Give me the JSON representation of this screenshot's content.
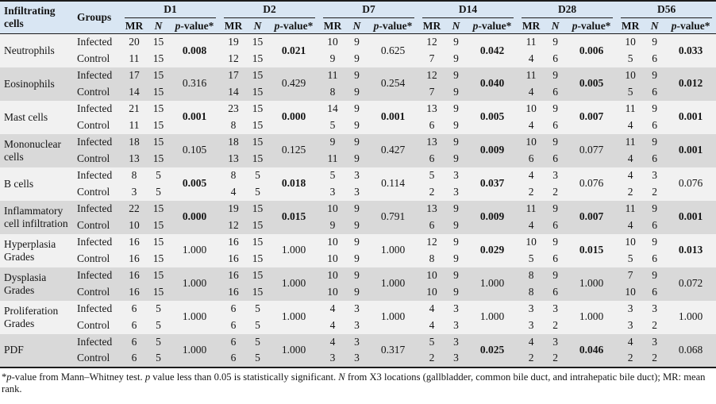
{
  "table": {
    "col_infiltrating": "Infiltrating cells",
    "col_groups": "Groups",
    "days": [
      "D1",
      "D2",
      "D7",
      "D14",
      "D28",
      "D56"
    ],
    "sub_mr": "MR",
    "sub_n": "N",
    "sub_p_italic": "p",
    "sub_p_rest": "-value*",
    "group_labels": [
      "Infected",
      "Control"
    ],
    "rows": [
      {
        "name": "Neutrophils",
        "infected_mr": [
          20,
          19,
          10,
          12,
          11,
          10
        ],
        "infected_n": [
          15,
          15,
          9,
          9,
          9,
          9
        ],
        "control_mr": [
          11,
          12,
          9,
          7,
          4,
          5
        ],
        "control_n": [
          15,
          15,
          9,
          9,
          6,
          6
        ],
        "p": [
          "0.008",
          "0.021",
          "0.625",
          "0.042",
          "0.006",
          "0.033"
        ],
        "p_bold": [
          true,
          true,
          false,
          true,
          true,
          true
        ]
      },
      {
        "name": "Eosinophils",
        "infected_mr": [
          17,
          17,
          11,
          12,
          11,
          10
        ],
        "infected_n": [
          15,
          15,
          9,
          9,
          9,
          9
        ],
        "control_mr": [
          14,
          14,
          8,
          7,
          4,
          5
        ],
        "control_n": [
          15,
          15,
          9,
          9,
          6,
          6
        ],
        "p": [
          "0.316",
          "0.429",
          "0.254",
          "0.040",
          "0.005",
          "0.012"
        ],
        "p_bold": [
          false,
          false,
          false,
          true,
          true,
          true
        ]
      },
      {
        "name": "Mast cells",
        "infected_mr": [
          21,
          23,
          14,
          13,
          10,
          11
        ],
        "infected_n": [
          15,
          15,
          9,
          9,
          9,
          9
        ],
        "control_mr": [
          11,
          8,
          5,
          6,
          4,
          4
        ],
        "control_n": [
          15,
          15,
          9,
          9,
          6,
          6
        ],
        "p": [
          "0.001",
          "0.000",
          "0.001",
          "0.005",
          "0.007",
          "0.001"
        ],
        "p_bold": [
          true,
          true,
          true,
          true,
          true,
          true
        ]
      },
      {
        "name": "Mononuclear cells",
        "infected_mr": [
          18,
          18,
          9,
          13,
          10,
          11
        ],
        "infected_n": [
          15,
          15,
          9,
          9,
          9,
          9
        ],
        "control_mr": [
          13,
          13,
          11,
          6,
          6,
          4
        ],
        "control_n": [
          15,
          15,
          9,
          9,
          6,
          6
        ],
        "p": [
          "0.105",
          "0.125",
          "0.427",
          "0.009",
          "0.077",
          "0.001"
        ],
        "p_bold": [
          false,
          false,
          false,
          true,
          false,
          true
        ]
      },
      {
        "name": "B cells",
        "infected_mr": [
          8,
          8,
          5,
          5,
          4,
          4
        ],
        "infected_n": [
          5,
          5,
          3,
          3,
          3,
          3
        ],
        "control_mr": [
          3,
          4,
          3,
          2,
          2,
          2
        ],
        "control_n": [
          5,
          5,
          3,
          3,
          2,
          2
        ],
        "p": [
          "0.005",
          "0.018",
          "0.114",
          "0.037",
          "0.076",
          "0.076"
        ],
        "p_bold": [
          true,
          true,
          false,
          true,
          false,
          false
        ]
      },
      {
        "name": "Inflammatory cell infiltration",
        "infected_mr": [
          22,
          19,
          10,
          13,
          11,
          11
        ],
        "infected_n": [
          15,
          15,
          9,
          9,
          9,
          9
        ],
        "control_mr": [
          10,
          12,
          9,
          6,
          4,
          4
        ],
        "control_n": [
          15,
          15,
          9,
          9,
          6,
          6
        ],
        "p": [
          "0.000",
          "0.015",
          "0.791",
          "0.009",
          "0.007",
          "0.001"
        ],
        "p_bold": [
          true,
          true,
          false,
          true,
          true,
          true
        ]
      },
      {
        "name": "Hyperplasia Grades",
        "infected_mr": [
          16,
          16,
          10,
          12,
          10,
          10
        ],
        "infected_n": [
          15,
          15,
          9,
          9,
          9,
          9
        ],
        "control_mr": [
          16,
          16,
          10,
          8,
          5,
          5
        ],
        "control_n": [
          15,
          15,
          9,
          9,
          6,
          6
        ],
        "p": [
          "1.000",
          "1.000",
          "1.000",
          "0.029",
          "0.015",
          "0.013"
        ],
        "p_bold": [
          false,
          false,
          false,
          true,
          true,
          true
        ]
      },
      {
        "name": "Dysplasia Grades",
        "infected_mr": [
          16,
          16,
          10,
          10,
          8,
          7
        ],
        "infected_n": [
          15,
          15,
          9,
          9,
          9,
          9
        ],
        "control_mr": [
          16,
          16,
          10,
          10,
          8,
          10
        ],
        "control_n": [
          15,
          15,
          9,
          9,
          6,
          6
        ],
        "p": [
          "1.000",
          "1.000",
          "1.000",
          "1.000",
          "1.000",
          "0.072"
        ],
        "p_bold": [
          false,
          false,
          false,
          false,
          false,
          false
        ]
      },
      {
        "name": "Proliferation Grades",
        "infected_mr": [
          6,
          6,
          4,
          4,
          3,
          3
        ],
        "infected_n": [
          5,
          5,
          3,
          3,
          3,
          3
        ],
        "control_mr": [
          6,
          6,
          4,
          4,
          3,
          3
        ],
        "control_n": [
          5,
          5,
          3,
          3,
          2,
          2
        ],
        "p": [
          "1.000",
          "1.000",
          "1.000",
          "1.000",
          "1.000",
          "1.000"
        ],
        "p_bold": [
          false,
          false,
          false,
          false,
          false,
          false
        ]
      },
      {
        "name": "PDF",
        "infected_mr": [
          6,
          6,
          4,
          5,
          4,
          4
        ],
        "infected_n": [
          5,
          5,
          3,
          3,
          3,
          3
        ],
        "control_mr": [
          6,
          6,
          3,
          2,
          2,
          2
        ],
        "control_n": [
          5,
          5,
          3,
          3,
          2,
          2
        ],
        "p": [
          "1.000",
          "1.000",
          "0.317",
          "0.025",
          "0.046",
          "0.068"
        ],
        "p_bold": [
          false,
          false,
          false,
          true,
          true,
          false
        ]
      }
    ],
    "footnote_parts": [
      {
        "t": "*",
        "i": false
      },
      {
        "t": "p",
        "i": true
      },
      {
        "t": "-value from Mann–Whitney test. ",
        "i": false
      },
      {
        "t": "p",
        "i": true
      },
      {
        "t": " value less than 0.05 is statistically significant. ",
        "i": false
      },
      {
        "t": "N",
        "i": true
      },
      {
        "t": " from X3 locations (gallbladder, common bile duct, and intrahepatic bile duct); MR: mean rank.",
        "i": false
      }
    ]
  }
}
